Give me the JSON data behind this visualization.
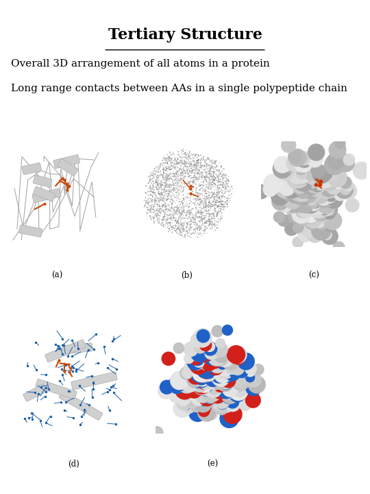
{
  "title": "Tertiary Structure",
  "subtitle_line1": "Overall 3D arrangement of all atoms in a protein",
  "subtitle_line2": "Long range contacts between AAs in a single polypeptide chain",
  "background_color": "#ffffff",
  "title_fontsize": 16,
  "subtitle_fontsize": 11,
  "label_a": "(a)",
  "label_b": "(b)",
  "label_c": "(c)",
  "label_d": "(d)",
  "label_e": "(e)",
  "fig_width": 5.4,
  "fig_height": 7.2,
  "dpi": 100
}
